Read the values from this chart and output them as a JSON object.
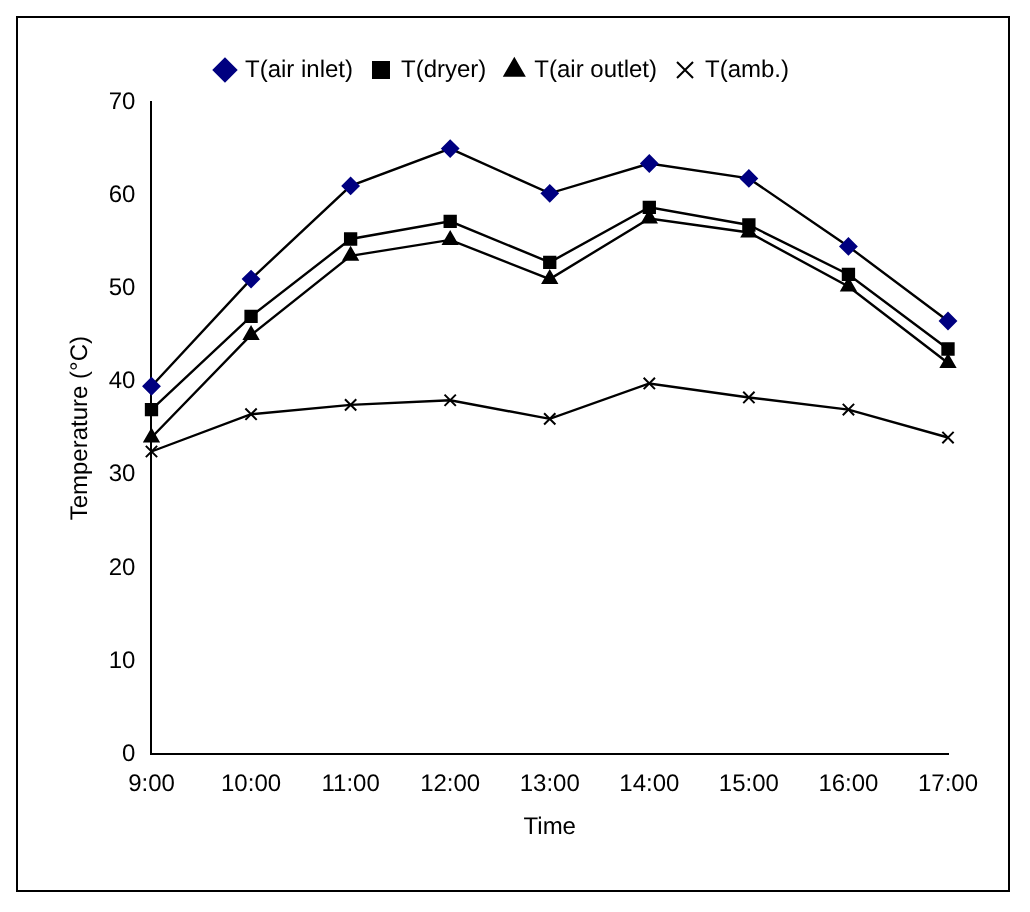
{
  "chart_data": {
    "type": "line",
    "xlabel": "Time",
    "ylabel": "Temperature (°C)",
    "categories": [
      "9:00",
      "10:00",
      "11:00",
      "12:00",
      "13:00",
      "14:00",
      "15:00",
      "16:00",
      "17:00"
    ],
    "series": [
      {
        "name": "T(air inlet)",
        "color": "#000080",
        "marker": "diamond",
        "values": [
          39.5,
          51,
          61,
          65,
          60.2,
          63.4,
          61.8,
          54.5,
          46.5
        ]
      },
      {
        "name": "T(dryer)",
        "color": "#000000",
        "marker": "square",
        "values": [
          37,
          47,
          55.3,
          57.2,
          52.8,
          58.7,
          56.8,
          51.5,
          43.5
        ]
      },
      {
        "name": "T(air outlet)",
        "color": "#000000",
        "marker": "triangle",
        "values": [
          34,
          45,
          53.5,
          55.2,
          51,
          57.5,
          56,
          50.2,
          42
        ]
      },
      {
        "name": "T(amb.)",
        "color": "#000000",
        "marker": "cross",
        "values": [
          32.5,
          36.5,
          37.5,
          38,
          36,
          39.8,
          38.3,
          37,
          34
        ]
      }
    ],
    "ylim": [
      0,
      70
    ],
    "yticks": [
      0,
      10,
      20,
      30,
      40,
      50,
      60,
      70
    ],
    "grid": false,
    "legend": "top"
  }
}
